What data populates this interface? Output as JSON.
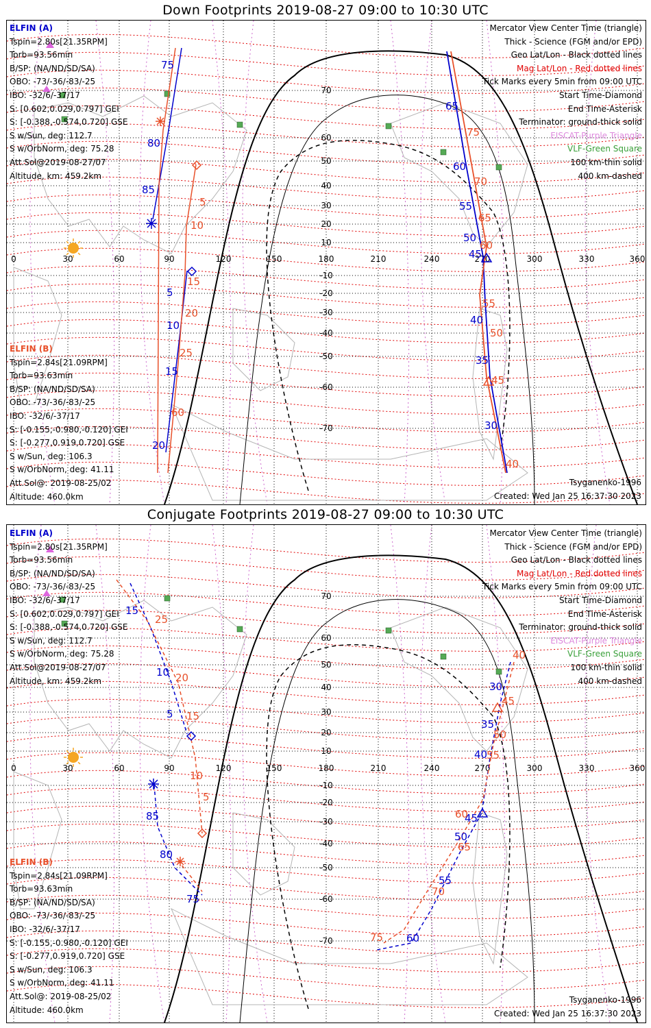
{
  "colors": {
    "elfin_a": "#0000cc",
    "elfin_b": "#e8502a",
    "mag_grid": "#e00000",
    "geo_grid": "#000000",
    "eiscat": "#dd66dd",
    "vlf": "#3aa03a",
    "sun": "#f5a623"
  },
  "down": {
    "title": "Down Footprints 2019-08-27 09:00 to 10:30 UTC",
    "created": "Created: Wed Jan 25 16:37:30 2023",
    "model": "Tsyganenko-1996"
  },
  "conj": {
    "title": "Conjugate Footprints 2019-08-27 09:00 to 10:30 UTC",
    "created": "Created: Wed Jan 25 16:37:30 2023",
    "model": "Tsyganenko-1996"
  },
  "elfin_a": {
    "header": "ELFIN (A)",
    "lines": [
      "Tspin=2.80s[21.35RPM]",
      "Torb=93.56min",
      "B/SP: (NA/ND/SD/SA)",
      "OBO: -73/-36/-83/-25",
      "IBO: -32/6/-37/17",
      "S: [0.602,0.029,0.797] GEI",
      "S: [-0.388,-0.574,0.720] GSE",
      "S w/Sun, deg: 112.7",
      "S w/OrbNorm, deg: 75.28",
      "Att.Sol@2019-08-27/07",
      "Altitude, km: 459.2km"
    ]
  },
  "elfin_b": {
    "header": "ELFIN (B)",
    "lines": [
      "Tspin=2.84s[21.09RPM]",
      "Torb=93.63min",
      "B/SP: (NA/ND/SD/SA)",
      "OBO: -73/-36/-83/-25",
      "IBO: -32/6/-37/17",
      "S: [-0.155,-0.980,-0.120] GEI",
      "S: [-0.277,0.919,0.720] GSE",
      "S w/Sun, deg: 106.3",
      "S w/OrbNorm, deg: 41.11",
      "Att.Sol@: 2019-08-25/02",
      "Altitude: 460.0km"
    ]
  },
  "legend": {
    "l1": "Mercator View Center Time (triangle)",
    "l2": "Thick - Science (FGM and/or EPD)",
    "l3": "Geo Lat/Lon - Black dotted lines",
    "l4": "Mag Lat/Lon - Red dotted lines",
    "l5": "Tick Marks every 5min from 09:00 UTC",
    "l6": "Start Time-Diamond",
    "l7": "End Time-Asterisk",
    "l8": "Terminator: ground-thick solid",
    "l9": "EISCAT-Purple Triangle",
    "l10": "VLF-Green Square",
    "l11": "100 km-thin solid",
    "l12": "400 km-dashed"
  },
  "axes": {
    "lon_labels": [
      "0",
      "30",
      "60",
      "90",
      "120",
      "150",
      "180",
      "210",
      "240",
      "270",
      "300",
      "330",
      "360"
    ],
    "lat_labels": [
      "70",
      "60",
      "50",
      "40",
      "30",
      "20",
      "10",
      "-10",
      "-20",
      "-30",
      "-40",
      "-50",
      "-60",
      "-70"
    ]
  },
  "track_labels": {
    "down_a": [
      "75",
      "80",
      "85",
      "5",
      "10",
      "15",
      "20",
      "65",
      "60",
      "55",
      "50",
      "45",
      "40",
      "35",
      "30"
    ],
    "down_b": [
      "5",
      "10",
      "15",
      "20",
      "25",
      "60",
      "75",
      "70",
      "65",
      "60",
      "55",
      "50",
      "45",
      "40"
    ],
    "conj_a": [
      "15",
      "10",
      "5",
      "85",
      "80",
      "75",
      "30",
      "35",
      "40",
      "45",
      "50",
      "55",
      "60"
    ],
    "conj_b": [
      "25",
      "20",
      "15",
      "10",
      "5",
      "40",
      "45",
      "50",
      "55",
      "60",
      "65",
      "70",
      "75"
    ]
  }
}
